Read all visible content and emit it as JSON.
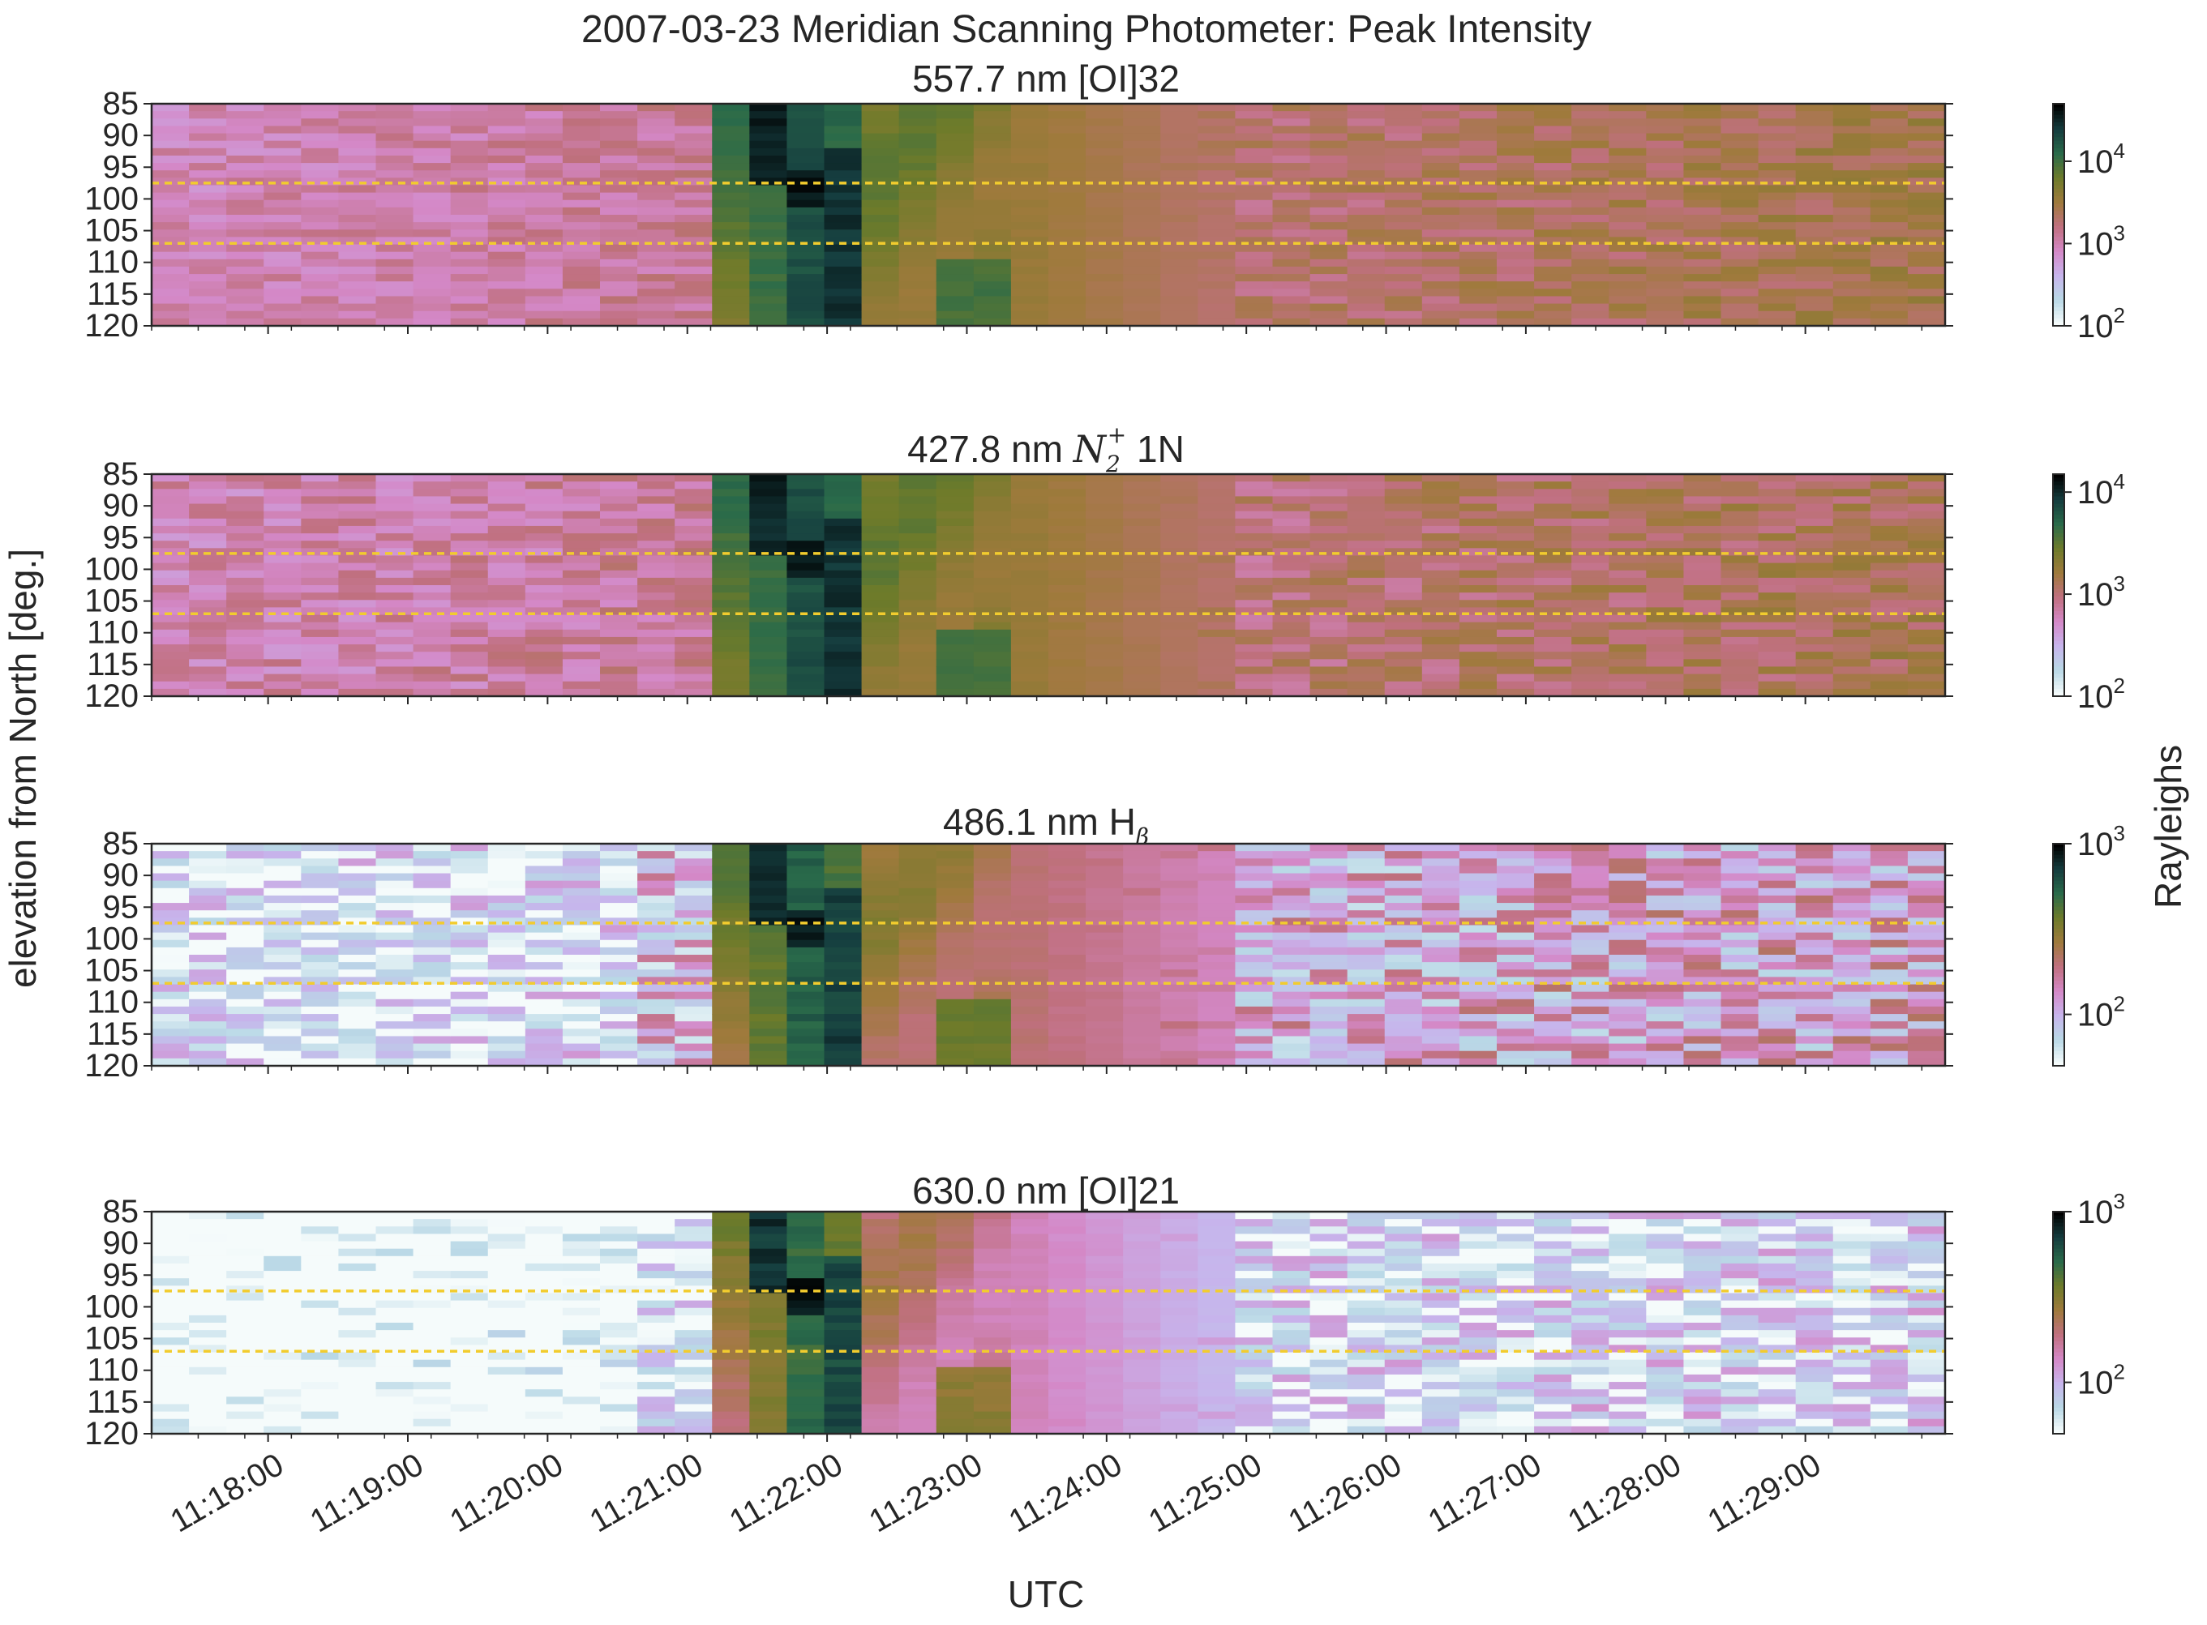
{
  "figure": {
    "suptitle": "2007-03-23  Meridian Scanning Photometer: Peak Intensity",
    "ylabel": "elevation from North [deg.]",
    "xlabel": "UTC",
    "colorbar_label": "Rayleighs"
  },
  "chart_data": {
    "type": "heatmap",
    "x_range": [
      "11:17:10",
      "11:30:00"
    ],
    "xticks": [
      "11:18:00",
      "11:19:00",
      "11:20:00",
      "11:21:00",
      "11:22:00",
      "11:23:00",
      "11:24:00",
      "11:25:00",
      "11:26:00",
      "11:27:00",
      "11:28:00",
      "11:29:00"
    ],
    "y_range": [
      85,
      120
    ],
    "yticks": [
      "85",
      "90",
      "95",
      "100",
      "105",
      "110",
      "115",
      "120"
    ],
    "reference_lines_deg": [
      97.5,
      107
    ],
    "n_time_bins": 48,
    "n_elev_bins": 30,
    "panels": [
      {
        "title": "557.7 nm  [OI]32",
        "cbar_min": 100,
        "cbar_max": 50000,
        "cbar_ticks": [
          {
            "base": "10",
            "exp": "2",
            "value": 100
          },
          {
            "base": "10",
            "exp": "3",
            "value": 1000
          },
          {
            "base": "10",
            "exp": "4",
            "value": 10000
          }
        ],
        "background": 900,
        "event_peak": 50000
      },
      {
        "title_main": "427.8 nm  ",
        "title_math": "N",
        "title_sub": "2",
        "title_sup": "+",
        "title_end": " 1N",
        "cbar_min": 100,
        "cbar_max": 15000,
        "cbar_ticks": [
          {
            "base": "10",
            "exp": "2",
            "value": 100
          },
          {
            "base": "10",
            "exp": "3",
            "value": 1000
          },
          {
            "base": "10",
            "exp": "4",
            "value": 10000
          }
        ],
        "background": 600,
        "event_peak": 15000
      },
      {
        "title_main": "486.1 nm  H",
        "title_sub": "β",
        "cbar_min": 50,
        "cbar_max": 1000,
        "cbar_ticks": [
          {
            "base": "10",
            "exp": "2",
            "value": 100
          },
          {
            "base": "10",
            "exp": "3",
            "value": 1000
          }
        ],
        "background": 90,
        "event_peak": 1000
      },
      {
        "title": "630.0 nm  [OI]21",
        "cbar_min": 50,
        "cbar_max": 1000,
        "cbar_ticks": [
          {
            "base": "10",
            "exp": "2",
            "value": 100
          },
          {
            "base": "10",
            "exp": "3",
            "value": 1000
          }
        ],
        "background": 55,
        "event_peak": 1000
      }
    ]
  },
  "colors": {
    "refline": "#f2cc2e",
    "axis": "#262626",
    "colormap": [
      "#f5fbfb",
      "#b9d8e6",
      "#c7b4ec",
      "#d488c7",
      "#c0707f",
      "#9f7a3c",
      "#6e7b2a",
      "#2a6b4a",
      "#153d3f",
      "#000000"
    ]
  }
}
